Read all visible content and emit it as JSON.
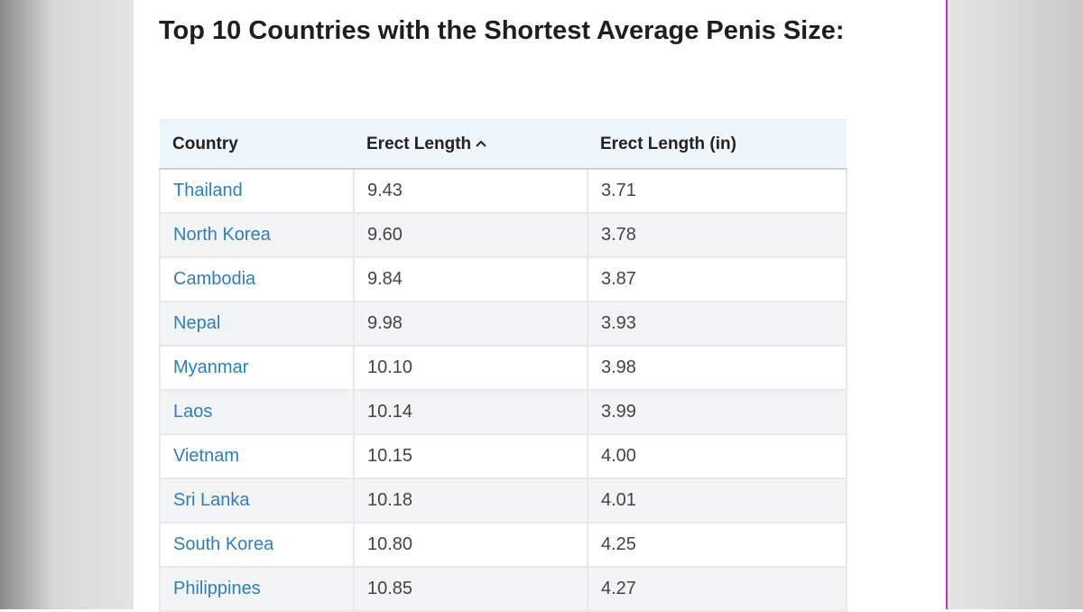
{
  "header": {
    "title": "Top 10 Countries with the Shortest Average Penis Size:"
  },
  "table": {
    "columns": [
      "Country",
      "Erect Length",
      "Erect Length (in)"
    ],
    "rows": [
      [
        "Thailand",
        "9.43",
        "3.71"
      ],
      [
        "North Korea",
        "9.60",
        "3.78"
      ],
      [
        "Cambodia",
        "9.84",
        "3.87"
      ],
      [
        "Nepal",
        "9.98",
        "3.93"
      ],
      [
        "Myanmar",
        "10.10",
        "3.98"
      ],
      [
        "Laos",
        "10.14",
        "3.99"
      ],
      [
        "Vietnam",
        "10.15",
        "4.00"
      ],
      [
        "Sri Lanka",
        "10.18",
        "4.01"
      ],
      [
        "South Korea",
        "10.80",
        "4.25"
      ],
      [
        "Philippines",
        "10.85",
        "4.27"
      ]
    ]
  }
}
